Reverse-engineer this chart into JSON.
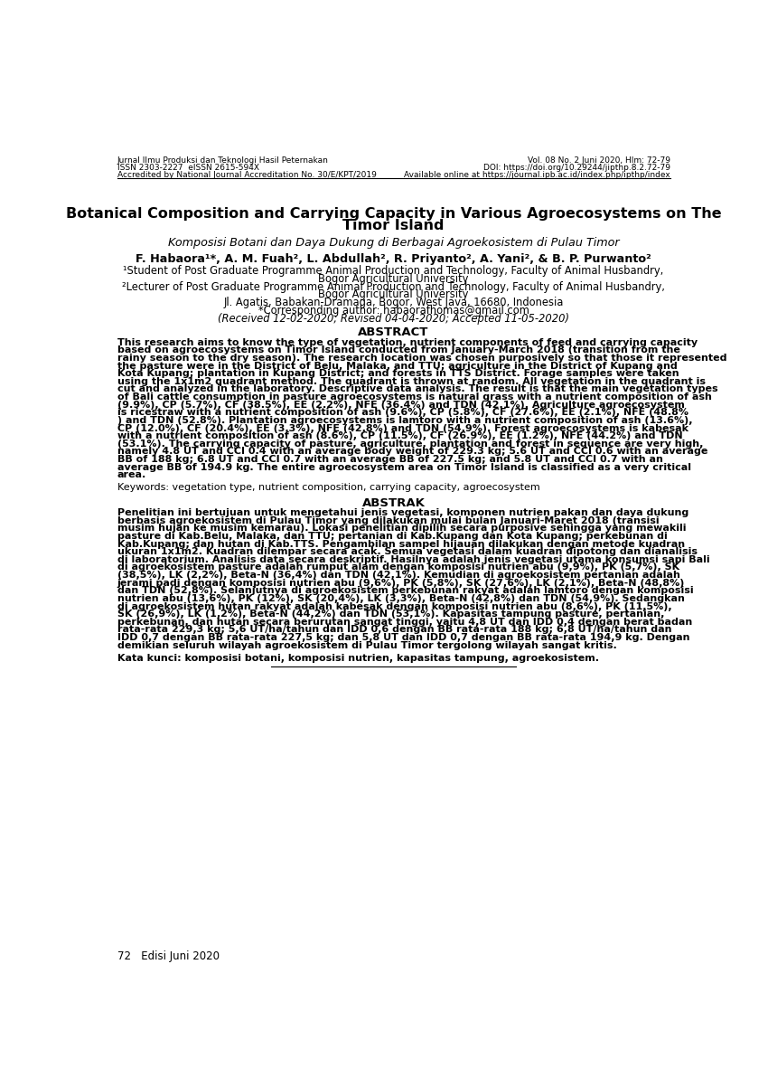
{
  "background_color": "#ffffff",
  "header_left": [
    "Jurnal Ilmu Produksi dan Teknologi Hasil Peternakan",
    "ISSN 2303-2227  eISSN 2615-594X",
    "Accredited by National Journal Accreditation No. 30/E/KPT/2019"
  ],
  "header_right": [
    "Vol. 08 No. 2 Juni 2020, Hlm: 72-79",
    "DOI: https://doi.org/10.29244/jipthp.8.2.72-79",
    "Available online at https://journal.ipb.ac.id/index.php/ipthp/index"
  ],
  "title_line1": "Botanical Composition and Carrying Capacity in Various Agroecosystems on The",
  "title_line2": "Timor Island",
  "subtitle": "Komposisi Botani dan Daya Dukung di Berbagai Agroekosistem di Pulau Timor",
  "authors": "F. Habaora¹*, A. M. Fuah², L. Abdullah², R. Priyanto², A. Yani², & B. P. Purwanto²",
  "affil1a": "¹Student of Post Graduate Programme Animal Production and Technology, Faculty of Animal Husbandry,",
  "affil1b": "Bogor Agricultural University",
  "affil2a": "²Lecturer of Post Graduate Programme Animal Production and Technology, Faculty of Animal Husbandry,",
  "affil2b": "Bogor Agricultural University",
  "affil3": "Jl. Agatis, Babakan-Dramaga, Bogor, West Java, 16680, Indonesia",
  "affil4": "*Corresponding author: habaorafhomas@gmail.com",
  "affil5": "(Received 12-02-2020; Revised 04-04-2020; Accepted 11-05-2020)",
  "abstract_title": "ABSTRACT",
  "abstract_en_lines": [
    "This research aims to know the type of vegetation, nutrient components of feed and carrying capacity",
    "based on agroecosystems on Timor Island conducted from January-March 2018 (transition from the",
    "rainy season to the dry season). The research location was chosen purposively so that those it represented",
    "the pasture were in the District of Belu, Malaka, and TTU; agriculture in the District of Kupang and",
    "Kota Kupang; plantation in Kupang District; and forests in TTS District. Forage samples were taken",
    "using the 1x1m2 quadrant method. The quadrant is thrown at random. All vegetation in the quadrant is",
    "cut and analyzed in the laboratory. Descriptive data analysis. The result is that the main vegetation types",
    "of Bali cattle consumption in pasture agroecosystems is natural grass with a nutrient composition of ash",
    "(9.9%), CP (5.7%), CF (38.5%), EE (2.2%), NFE (36.4%) and TDN (42.1%). Agriculture agroecosystem",
    "is ricestraw with a nutrient composition of ash (9.6%), CP (5.8%), CF (27.6%), EE (2.1%), NFE (48.8%",
    ") and TDN (52.8%). Plantation agroecosystems is lamtoro with a nutrient composition of ash (13.6%),",
    "CP (12.0%), CF (20.4%), EE (3.3%), NFE (42.8%) and TDN (54.9%). Forest agroecosystems is kabesak",
    "with a nutrient composition of ash (8.6%), CP (11.5%), CF (26.9%), EE (1.2%), NFE (44.2%) and TDN",
    "(53.1%). The carrying capacity of pasture, agriculture, plantation and forest in sequence are very high,",
    "namely 4.8 UT and CCI 0.4 with an average body weight of 229.3 kg; 5.6 UT and CCI 0.6 with an average",
    "BB of 188 kg; 6.8 UT and CCI 0.7 with an average BB of 227.5 kg; and 5.8 UT and CCI 0.7 with an",
    "average BB of 194.9 kg. The entire agroecosystem area on Timor Island is classified as a very critical",
    "area."
  ],
  "keywords_en": "Keywords: vegetation type, nutrient composition, carrying capacity, agroecosystem",
  "abstrak_title": "ABSTRAK",
  "abstract_id_lines": [
    "Penelitian ini bertujuan untuk mengetahui jenis vegetasi, komponen nutrien pakan dan daya dukung",
    "berbasis agroekosistem di Pulau Timor yang dilakukan mulai bulan Januari-Maret 2018 (transisi",
    "musim hujan ke musim kemarau). Lokasi penelitian dipilih secara purposive sehingga yang mewakili",
    "pasture di Kab.Belu, Malaka, dan TTU; pertanian di Kab.Kupang dan Kota Kupang; perkebunan di",
    "Kab.Kupang; dan hutan di Kab.TTS. Pengambilan sampel hijauan dilakukan dengan metode kuadran",
    "ukuran 1x1m2. Kuadran dilempar secara acak. Semua vegetasi dalam kuadran dipotong dan dianalisis",
    "di laboratorium. Analisis data secara deskriptif. Hasilnya adalah jenis vegetasi utama konsumsi sapi Bali",
    "di agroekosistem pasture adalah rumput alam dengan komposisi nutrien abu (9,9%), PK (5,7%), SK",
    "(38,5%), LK (2,2%), Beta-N (36,4%) dan TDN (42,1%). Kemudian di agroekosistem pertanian adalah",
    "jerami padi dengan komposisi nutrien abu (9,6%), PK (5,8%), SK (27,6%), LK (2,1%), Beta-N (48,8%)",
    "dan TDN (52,8%). Selanjutnya di agroekosistem perkebunan rakyat adalah lamtoro dengan komposisi",
    "nutrien abu (13,6%), PK (12%), SK (20,4%), LK (3,3%), Beta-N (42,8%) dan TDN (54,9%). Sedangkan",
    "di agroekosistem hutan rakyat adalah kabesak dengan komposisi nutrien abu (8,6%), PK (11,5%),",
    "SK (26,9%), LK (1,2%), Beta-N (44,2%) dan TDN (53,1%). Kapasitas tampung pasture, pertanian,",
    "perkebunan, dan hutan secara berurutan sangat tinggi, yaitu 4,8 UT dan IDD 0,4 dengan berat badan",
    "rata-rata 229,3 kg; 5,6 UT/ha/tahun dan IDD 0,6 dengan BB rata-rata 188 kg; 6,8 UT/ha/tahun dan",
    "IDD 0,7 dengan BB rata-rata 227,5 kg; dan 5,8 UT dan IDD 0,7 dengan BB rata-rata 194,9 kg. Dengan",
    "demikian seluruh wilayah agroekosistem di Pulau Timor tergolong wilayah sangat kritis."
  ],
  "keywords_id": "Kata kunci: komposisi botani, komposisi nutrien, kapasitas tampung, agroekosistem.",
  "footer": "72   Edisi Juni 2020"
}
